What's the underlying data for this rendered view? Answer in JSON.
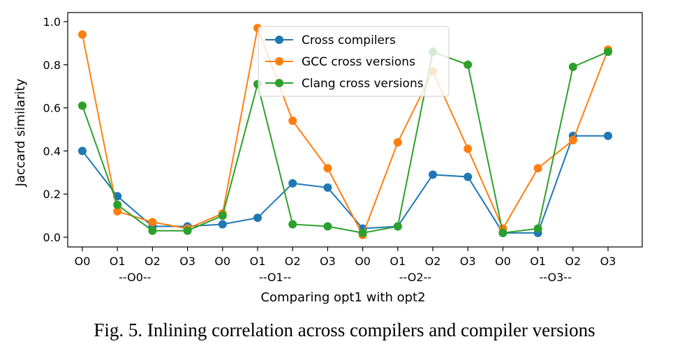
{
  "chart_data": {
    "type": "line",
    "categories": [
      "O0",
      "O1",
      "O2",
      "O3",
      "O0",
      "O1",
      "O2",
      "O3",
      "O0",
      "O1",
      "O2",
      "O3",
      "O0",
      "O1",
      "O2",
      "O3"
    ],
    "group_labels": [
      "--O0--",
      "--O1--",
      "--O2--",
      "--O3--"
    ],
    "xlabel": "Comparing opt1 with opt2",
    "ylabel": "Jaccard similarity",
    "ylim": [
      0.0,
      1.0
    ],
    "yticks": [
      "0.0",
      "0.2",
      "0.4",
      "0.6",
      "0.8",
      "1.0"
    ],
    "legend_position": "top-center",
    "grid": false,
    "series": [
      {
        "name": "Cross compilers",
        "color": "#1f77b4",
        "values": [
          0.4,
          0.19,
          0.05,
          0.05,
          0.06,
          0.09,
          0.25,
          0.23,
          0.04,
          0.05,
          0.29,
          0.28,
          0.02,
          0.02,
          0.47,
          0.47
        ]
      },
      {
        "name": "GCC cross versions",
        "color": "#ff7f0e",
        "values": [
          0.94,
          0.12,
          0.07,
          0.04,
          0.11,
          0.97,
          0.54,
          0.32,
          0.01,
          0.44,
          0.77,
          0.41,
          0.04,
          0.32,
          0.45,
          0.87
        ]
      },
      {
        "name": "Clang cross versions",
        "color": "#2ca02c",
        "values": [
          0.61,
          0.15,
          0.03,
          0.03,
          0.1,
          0.71,
          0.06,
          0.05,
          0.02,
          0.05,
          0.86,
          0.8,
          0.02,
          0.04,
          0.79,
          0.86
        ]
      }
    ]
  },
  "caption": "Fig. 5.  Inlining correlation across compilers and compiler versions"
}
